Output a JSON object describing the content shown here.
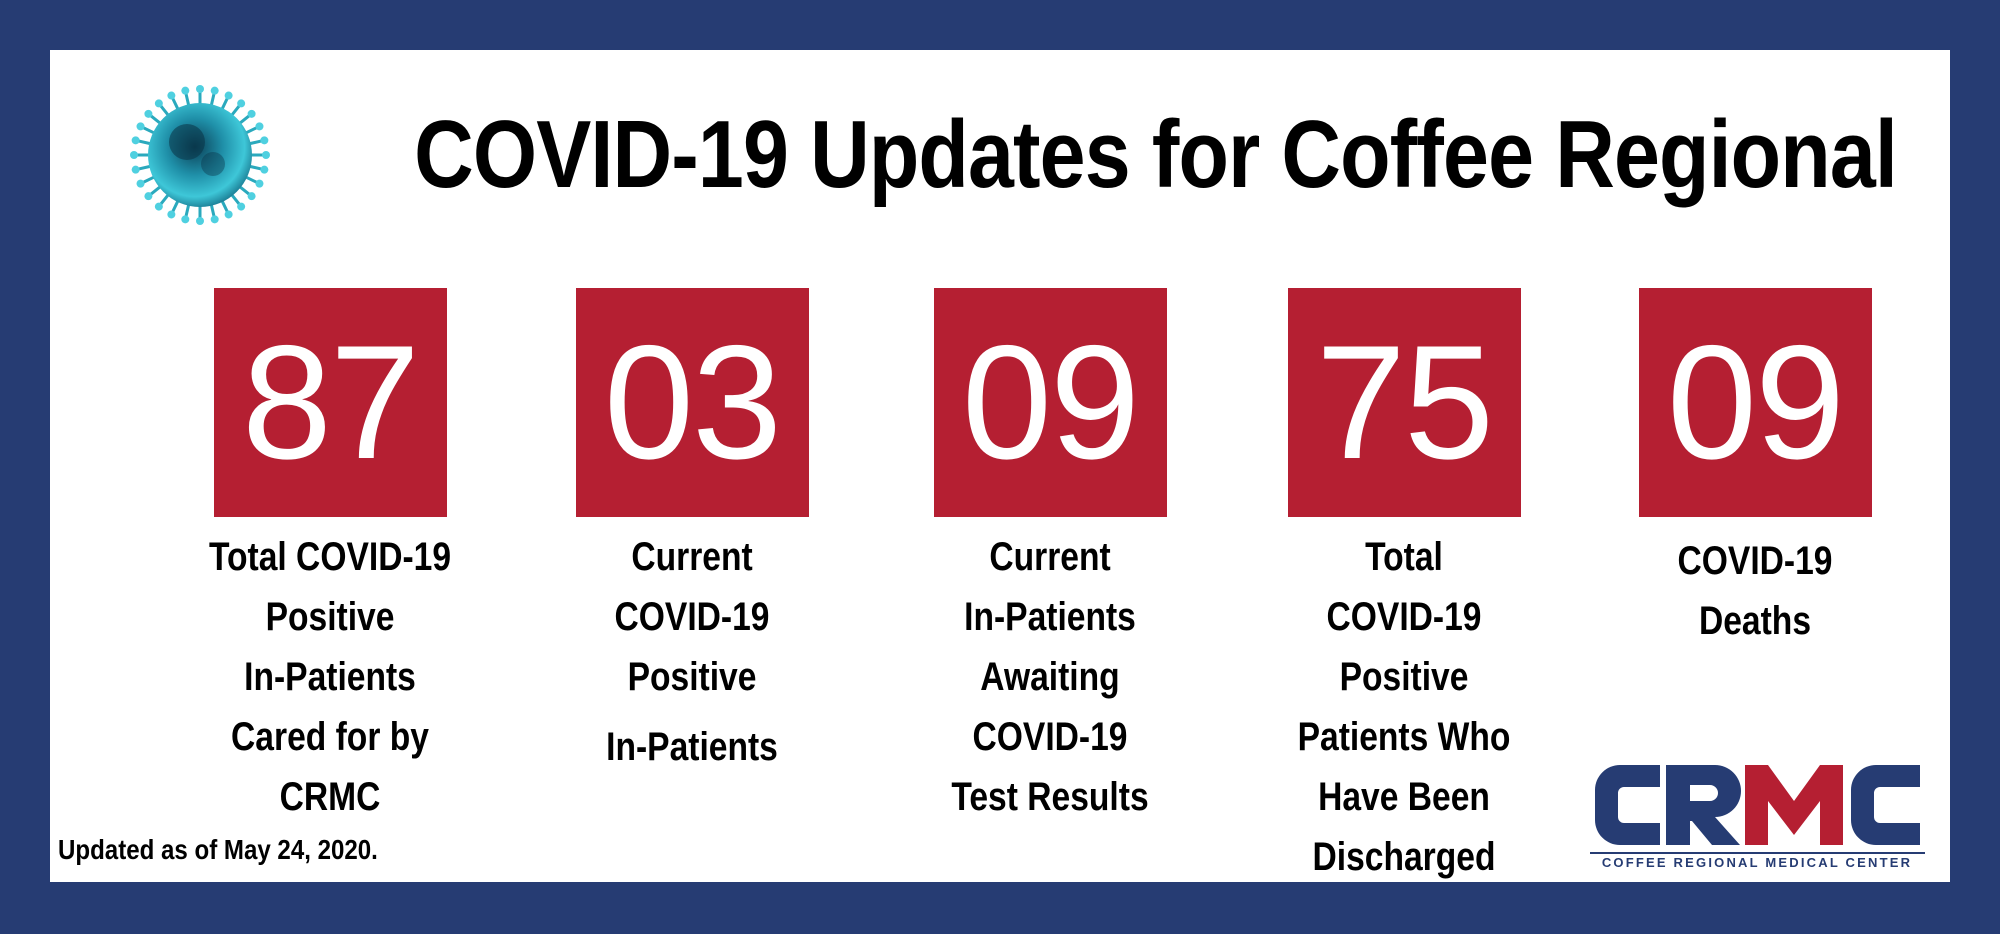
{
  "title": "COVID-19 Updates for Coffee Regional",
  "icons": {
    "virus": "coronavirus-icon"
  },
  "colors": {
    "frame": "#263c73",
    "stat_box": "#b51f32",
    "logo_red": "#b51f32",
    "logo_blue": "#263c73"
  },
  "stats": [
    {
      "value": "87",
      "label_lines": [
        "Total COVID-19",
        "Positive",
        "In-Patients",
        "Cared for by",
        "CRMC"
      ]
    },
    {
      "value": "03",
      "label_lines": [
        "Current",
        "COVID-19",
        "Positive",
        "In-Patients"
      ]
    },
    {
      "value": "09",
      "label_lines": [
        "Current",
        "In-Patients",
        "Awaiting",
        "COVID-19",
        "Test Results"
      ]
    },
    {
      "value": "75",
      "label_lines": [
        "Total",
        "COVID-19",
        "Positive",
        "Patients Who",
        "Have Been",
        "Discharged"
      ]
    },
    {
      "value": "09",
      "label_lines": [
        "COVID-19",
        "Deaths"
      ]
    }
  ],
  "updated": "Updated as of May 24, 2020.",
  "logo": {
    "letters": [
      "C",
      "R",
      "M",
      "C"
    ],
    "tagline": "COFFEE REGIONAL MEDICAL CENTER"
  }
}
